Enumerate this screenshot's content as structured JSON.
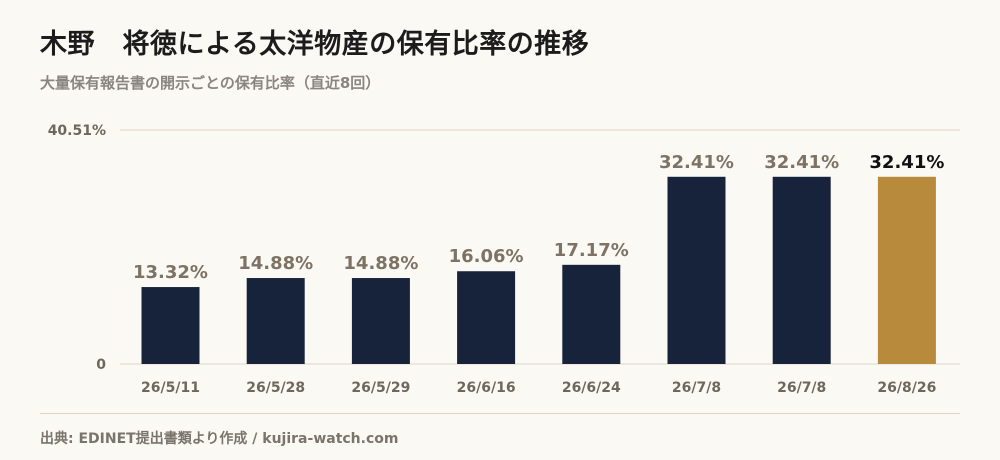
{
  "title": "木野　将徳による太洋物産の保有比率の推移",
  "subtitle": "大量保有報告書の開示ごとの保有比率（直近8回）",
  "source": "出典: EDINET提出書類より作成 / kujira-watch.com",
  "colors": {
    "bar": "#17223b",
    "highlight": "#b88a3c",
    "value_label": "#7d7264",
    "highlight_label": "#111111",
    "grid": "#ddd6c6",
    "tick": "#6e675e"
  },
  "chart_data": {
    "type": "bar",
    "title": "木野　将徳による太洋物産の保有比率の推移",
    "subtitle": "大量保有報告書の開示ごとの保有比率（直近8回）",
    "categories": [
      "26/5/11",
      "26/5/28",
      "26/5/29",
      "26/6/16",
      "26/6/24",
      "26/7/8",
      "26/7/8",
      "26/8/26"
    ],
    "values": [
      13.32,
      14.88,
      14.88,
      16.06,
      17.17,
      32.41,
      32.41,
      32.41
    ],
    "value_labels": [
      "13.32%",
      "14.88%",
      "14.88%",
      "16.06%",
      "17.17%",
      "32.41%",
      "32.41%",
      "32.41%"
    ],
    "highlight_index": 7,
    "ylim": [
      0,
      40.51
    ],
    "yticks": [
      "0",
      "40.51%"
    ],
    "xlabel": "",
    "ylabel": "",
    "grid": true
  }
}
